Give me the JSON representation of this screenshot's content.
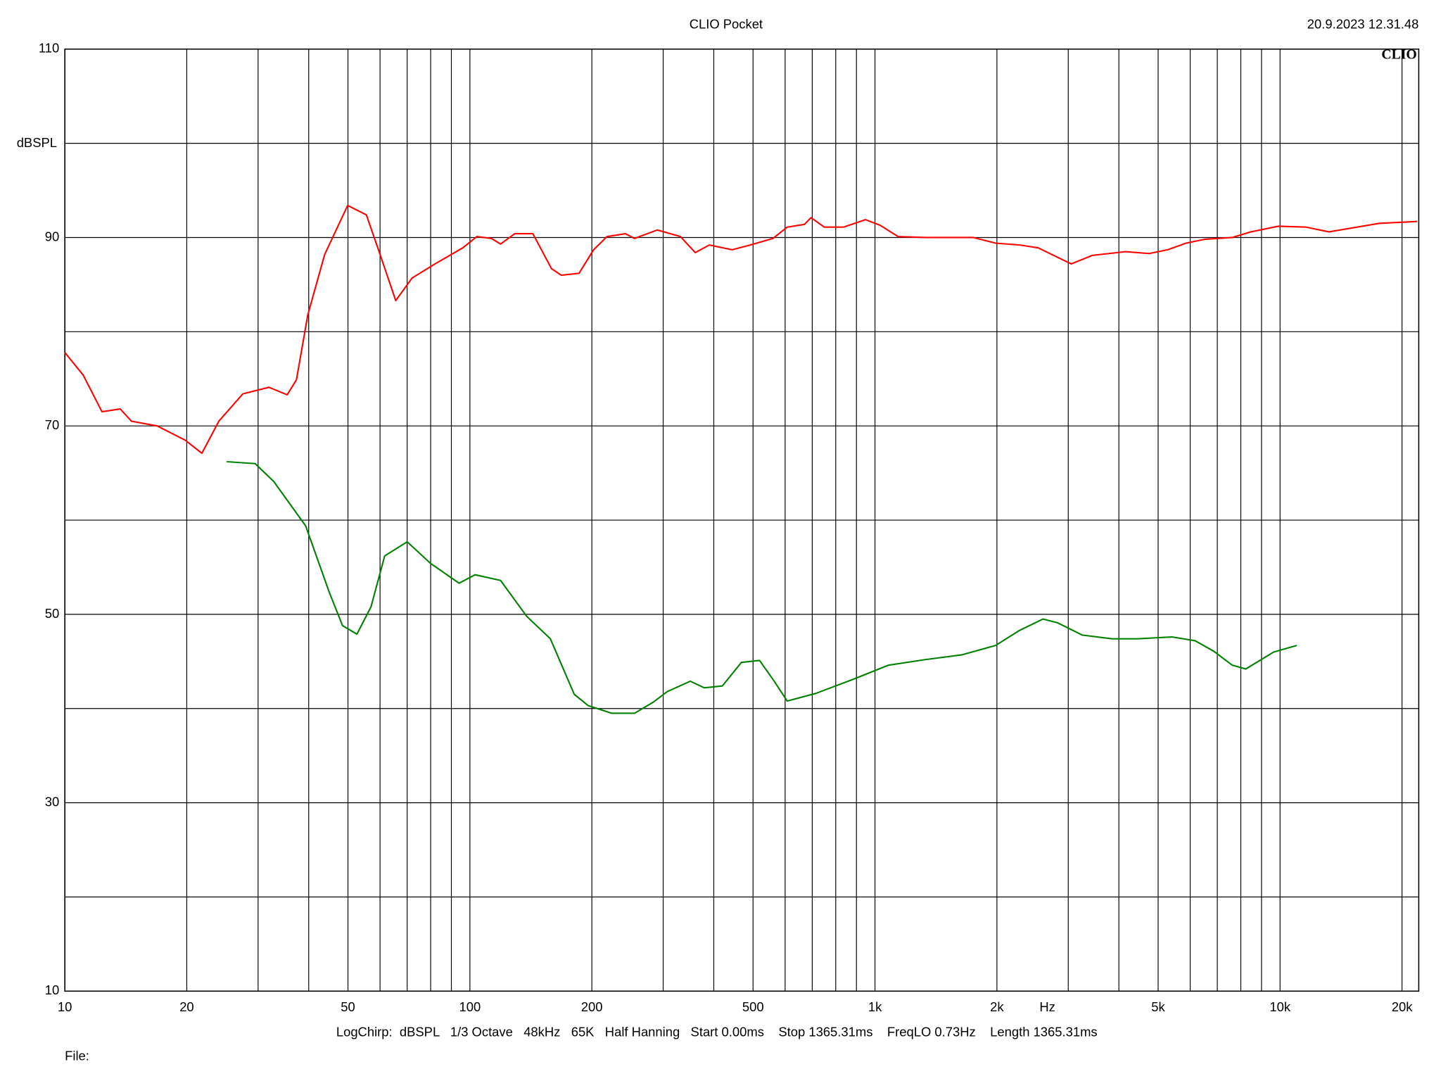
{
  "chart_data": {
    "type": "line",
    "title": "CLIO Pocket",
    "timestamp": "20.9.2023 12.31.48",
    "logo": "CLIO",
    "ylabel": "dBSPL",
    "xlabel": "Hz",
    "footer": "LogChirp:  dBSPL   1/3 Octave   48kHz   65K   Half Hanning   Start 0.00ms    Stop 1365.31ms    FreqLO 0.73Hz    Length 1365.31ms",
    "file_label": "File:",
    "xscale": "log",
    "grid": true,
    "xlim": [
      10,
      22000
    ],
    "ylim": [
      10,
      110
    ],
    "xticks": [
      10,
      20,
      50,
      100,
      200,
      500,
      {
        "value": 1000,
        "label": "1k"
      },
      {
        "value": 2000,
        "label": "2k"
      },
      {
        "value": 5000,
        "label": "5k"
      },
      {
        "value": 10000,
        "label": "10k"
      },
      {
        "value": 20000,
        "label": "20k"
      }
    ],
    "x_minor_ticks": [
      30,
      40,
      60,
      70,
      80,
      90,
      300,
      400,
      600,
      700,
      800,
      900,
      3000,
      4000,
      6000,
      7000,
      8000,
      9000
    ],
    "yticks": [
      10,
      30,
      50,
      70,
      90,
      110
    ],
    "y_minor_ticks": [
      20,
      40,
      60,
      80,
      100
    ],
    "series": [
      {
        "name": "red",
        "color": "#ff0000",
        "x": [
          10,
          11.1,
          12.35,
          13.7,
          14.6,
          16.9,
          19.8,
          21.8,
          24,
          27.5,
          31.9,
          35.4,
          37.3,
          39.8,
          43.8,
          49.9,
          55.5,
          60,
          65.6,
          72,
          82,
          96,
          104,
          113,
          119,
          129,
          143,
          159,
          168,
          186,
          202,
          218,
          242,
          255,
          290,
          331,
          360,
          390,
          444,
          492,
          560,
          607,
          670,
          695,
          750,
          836,
          947,
          1030,
          1140,
          1335,
          1750,
          1985,
          2275,
          2530,
          2825,
          3050,
          3440,
          4150,
          4750,
          5280,
          5860,
          6500,
          7620,
          8470,
          9900,
          11600,
          13200,
          15000,
          17600,
          21800
        ],
        "values": [
          77.8,
          75.4,
          71.5,
          71.8,
          70.5,
          70.0,
          68.5,
          67.1,
          70.5,
          73.4,
          74.1,
          73.3,
          74.9,
          81.8,
          88.2,
          93.4,
          92.4,
          88.2,
          83.3,
          85.7,
          87.2,
          88.9,
          90.1,
          89.9,
          89.3,
          90.4,
          90.4,
          86.7,
          86.0,
          86.2,
          88.7,
          90.1,
          90.4,
          89.9,
          90.8,
          90.1,
          88.4,
          89.2,
          88.7,
          89.2,
          89.9,
          91.1,
          91.4,
          92.1,
          91.1,
          91.1,
          91.9,
          91.3,
          90.1,
          90.0,
          90.0,
          89.4,
          89.2,
          88.9,
          87.9,
          87.2,
          88.1,
          88.5,
          88.3,
          88.7,
          89.4,
          89.8,
          90.0,
          90.6,
          91.2,
          91.1,
          90.6,
          91.0,
          91.5,
          91.7
        ]
      },
      {
        "name": "green",
        "color": "#008000",
        "x": [
          25.1,
          29.5,
          32.8,
          39.3,
          45,
          48.5,
          52.6,
          57,
          61.6,
          70,
          80,
          94,
          103,
          119,
          138,
          158,
          181,
          196,
          224,
          255,
          284,
          307,
          350,
          379,
          420,
          468,
          519,
          564,
          607,
          714,
          883,
          1080,
          1335,
          1640,
          1985,
          2275,
          2600,
          2825,
          3250,
          3850,
          4450,
          5410,
          6170,
          6850,
          7620,
          8230,
          9640,
          11000
        ],
        "values": [
          66.2,
          66.0,
          64.1,
          59.4,
          52.3,
          48.8,
          47.9,
          50.8,
          56.2,
          57.7,
          55.4,
          53.3,
          54.2,
          53.6,
          49.8,
          47.4,
          41.5,
          40.3,
          39.5,
          39.5,
          40.7,
          41.8,
          42.9,
          42.2,
          42.4,
          44.9,
          45.1,
          42.9,
          40.8,
          41.6,
          43.1,
          44.6,
          45.2,
          45.7,
          46.7,
          48.3,
          49.5,
          49.1,
          47.8,
          47.4,
          47.4,
          47.6,
          47.2,
          46.1,
          44.6,
          44.2,
          46.0,
          46.7
        ]
      }
    ]
  }
}
